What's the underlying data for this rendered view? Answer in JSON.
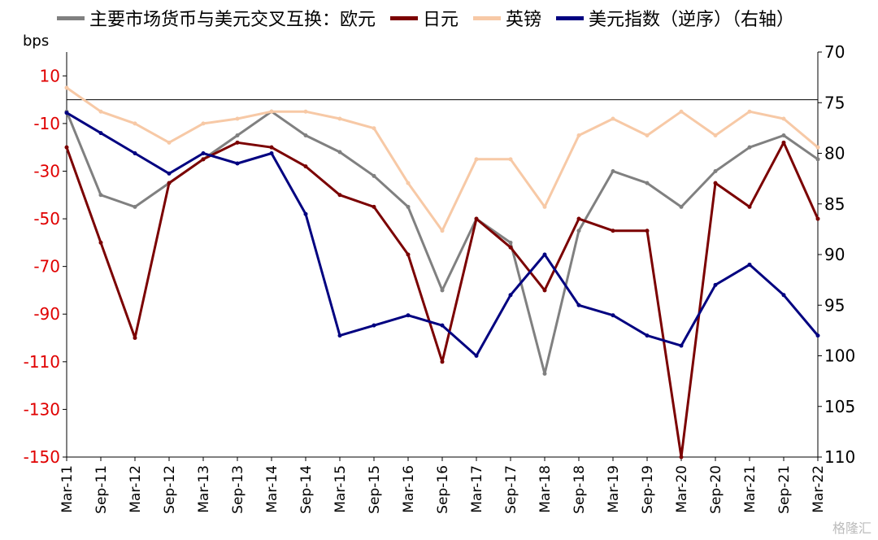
{
  "legend": {
    "euro": "主要市场货币与美元交叉互换：欧元",
    "yen": "日元",
    "gbp": "英镑",
    "dxy": "美元指数（逆序）（右轴）"
  },
  "unit_label": "bps",
  "watermark": "格隆汇",
  "chart_data": {
    "type": "line",
    "x": [
      "Mar-11",
      "Sep-11",
      "Mar-12",
      "Sep-12",
      "Mar-13",
      "Sep-13",
      "Mar-14",
      "Sep-14",
      "Mar-15",
      "Sep-15",
      "Mar-16",
      "Sep-16",
      "Mar-17",
      "Sep-17",
      "Mar-18",
      "Sep-18",
      "Mar-19",
      "Sep-19",
      "Mar-20",
      "Sep-20",
      "Mar-21",
      "Sep-21",
      "Mar-22"
    ],
    "ylim": [
      -150,
      20
    ],
    "yticks": [
      10,
      -10,
      -30,
      -50,
      -70,
      -90,
      -110,
      -130,
      -150
    ],
    "y2lim": [
      70,
      110
    ],
    "y2ticks": [
      70,
      75,
      80,
      85,
      90,
      95,
      100,
      105,
      110
    ],
    "y2_inverted": true,
    "series": [
      {
        "name": "主要市场货币与美元交叉互换：欧元",
        "color": "#808080",
        "axis": "left",
        "values": [
          -5,
          -40,
          -45,
          -35,
          -25,
          -15,
          -5,
          -15,
          -22,
          -32,
          -45,
          -80,
          -50,
          -60,
          -115,
          -55,
          -30,
          -35,
          -45,
          -30,
          -20,
          -15,
          -25
        ]
      },
      {
        "name": "日元",
        "color": "#7b0000",
        "axis": "left",
        "values": [
          -20,
          -60,
          -100,
          -35,
          -25,
          -18,
          -20,
          -28,
          -40,
          -45,
          -65,
          -110,
          -50,
          -62,
          -80,
          -50,
          -55,
          -55,
          -150,
          -35,
          -45,
          -18,
          -50
        ]
      },
      {
        "name": "英镑",
        "color": "#f7c9a6",
        "axis": "left",
        "values": [
          5,
          -5,
          -10,
          -18,
          -10,
          -8,
          -5,
          -5,
          -8,
          -12,
          -35,
          -55,
          -25,
          -25,
          -45,
          -15,
          -8,
          -15,
          -5,
          -15,
          -5,
          -8,
          -20
        ]
      },
      {
        "name": "美元指数（逆序）（右轴）",
        "color": "#000080",
        "axis": "right",
        "values": [
          76,
          78,
          80,
          82,
          80,
          81,
          80,
          86,
          98,
          97,
          96,
          97,
          100,
          94,
          90,
          95,
          96,
          98,
          99,
          93,
          91,
          94,
          98
        ]
      }
    ]
  }
}
